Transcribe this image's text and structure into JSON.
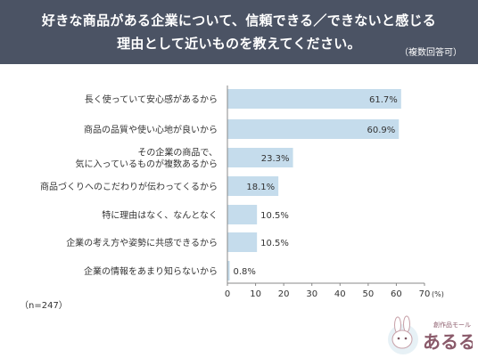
{
  "header": {
    "title_line1": "好きな商品がある企業について、信頼できる／できないと感じる",
    "title_line2": "理由として近いものを教えてください。",
    "note": "（複数回答可）"
  },
  "sample_size": "（n=247）",
  "logo": {
    "small_text": "創作品モール",
    "brand": "あるる"
  },
  "colors": {
    "header_bg": "#4b5364",
    "bar": "#c5dcec",
    "axis": "#888888",
    "text": "#333333"
  },
  "chart_data": {
    "type": "bar",
    "orientation": "horizontal",
    "categories": [
      [
        "長く使っていて安心感があるから"
      ],
      [
        "商品の品質や使い心地が良いから"
      ],
      [
        "その企業の商品で、",
        "気に入っているものが複数あるから"
      ],
      [
        "商品づくりへのこだわりが伝わってくるから"
      ],
      [
        "特に理由はなく、なんとなく"
      ],
      [
        "企業の考え方や姿勢に共感できるから"
      ],
      [
        "企業の情報をあまり知らないから"
      ]
    ],
    "values": [
      61.7,
      60.9,
      23.3,
      18.1,
      10.5,
      10.5,
      0.8
    ],
    "value_labels": [
      "61.7%",
      "60.9%",
      "23.3%",
      "18.1%",
      "10.5%",
      "10.5%",
      "0.8%"
    ],
    "xlim": [
      0,
      70
    ],
    "xticks": [
      "0",
      "10",
      "20",
      "30",
      "40",
      "50",
      "60",
      "70"
    ],
    "unit": "(%)",
    "grid": false
  }
}
